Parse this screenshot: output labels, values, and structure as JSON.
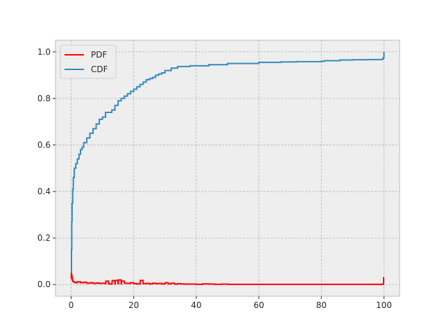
{
  "chart_data": {
    "type": "line",
    "title": "",
    "xlabel": "",
    "ylabel": "",
    "xlim": [
      -5,
      105
    ],
    "ylim": [
      -0.05,
      1.05
    ],
    "xticks": [
      0,
      20,
      40,
      60,
      80,
      100
    ],
    "yticks": [
      0.0,
      0.2,
      0.4,
      0.6,
      0.8,
      1.0
    ],
    "xtick_labels": [
      "0",
      "20",
      "40",
      "60",
      "80",
      "100"
    ],
    "ytick_labels": [
      "0.0",
      "0.2",
      "0.4",
      "0.6",
      "0.8",
      "1.0"
    ],
    "grid": true,
    "grid_style": "dashed",
    "background": "#eeeeee",
    "legend_position": "upper-left",
    "series": [
      {
        "name": "PDF",
        "color": "#ff0000",
        "style": "step",
        "x": [
          0,
          0.05,
          0.1,
          0.2,
          0.3,
          0.4,
          0.5,
          0.7,
          1,
          1.5,
          2,
          3,
          4,
          5,
          6,
          7,
          8,
          9,
          10,
          11,
          11.1,
          12,
          13,
          13.1,
          14,
          14.1,
          15,
          15.1,
          16,
          16.1,
          17,
          18,
          19,
          20,
          21,
          22,
          22.1,
          23,
          24,
          25,
          26,
          27,
          28,
          29,
          30,
          30.1,
          31,
          32,
          33,
          34,
          35,
          36,
          38,
          40,
          42,
          44,
          46,
          48,
          50,
          55,
          60,
          65,
          70,
          75,
          80,
          85,
          90,
          95,
          99.5,
          99.9,
          100
        ],
        "y": [
          0.055,
          0.03,
          0.045,
          0.025,
          0.035,
          0.02,
          0.015,
          0.012,
          0.01,
          0.008,
          0.012,
          0.008,
          0.01,
          0.006,
          0.008,
          0.005,
          0.007,
          0.005,
          0.006,
          0.004,
          0.015,
          0.003,
          0.004,
          0.017,
          0.003,
          0.018,
          0.004,
          0.02,
          0.003,
          0.015,
          0.006,
          0.005,
          0.008,
          0.004,
          0.003,
          0.005,
          0.018,
          0.004,
          0.005,
          0.003,
          0.006,
          0.004,
          0.005,
          0.003,
          0.004,
          0.008,
          0.003,
          0.006,
          0.002,
          0.004,
          0.003,
          0.002,
          0.002,
          0.001,
          0.003,
          0.002,
          0.001,
          0.002,
          0.001,
          0.001,
          0.001,
          0.001,
          0.001,
          0.001,
          0.001,
          0.001,
          0.001,
          0.001,
          0.002,
          0.03,
          0.03
        ]
      },
      {
        "name": "CDF",
        "color": "#348abd",
        "style": "step",
        "x": [
          0,
          0.1,
          0.2,
          0.3,
          0.5,
          0.7,
          1,
          1.5,
          2,
          2.5,
          3,
          3.5,
          4,
          5,
          6,
          7,
          8,
          9,
          10,
          11,
          13,
          14,
          15,
          16,
          17,
          18,
          19,
          20,
          21,
          22,
          23,
          24,
          25,
          26,
          27,
          28,
          29,
          30,
          32,
          34,
          38,
          44,
          50,
          60,
          67,
          72,
          80,
          81,
          86,
          90,
          95,
          99.5,
          99.8,
          100
        ],
        "y": [
          0.05,
          0.15,
          0.27,
          0.35,
          0.41,
          0.46,
          0.5,
          0.52,
          0.54,
          0.56,
          0.58,
          0.59,
          0.61,
          0.63,
          0.65,
          0.67,
          0.69,
          0.71,
          0.72,
          0.74,
          0.75,
          0.77,
          0.79,
          0.8,
          0.81,
          0.82,
          0.83,
          0.84,
          0.85,
          0.86,
          0.87,
          0.88,
          0.885,
          0.89,
          0.9,
          0.905,
          0.91,
          0.92,
          0.93,
          0.937,
          0.94,
          0.945,
          0.95,
          0.955,
          0.957,
          0.958,
          0.96,
          0.962,
          0.965,
          0.966,
          0.967,
          0.97,
          0.975,
          1.0
        ]
      }
    ]
  }
}
